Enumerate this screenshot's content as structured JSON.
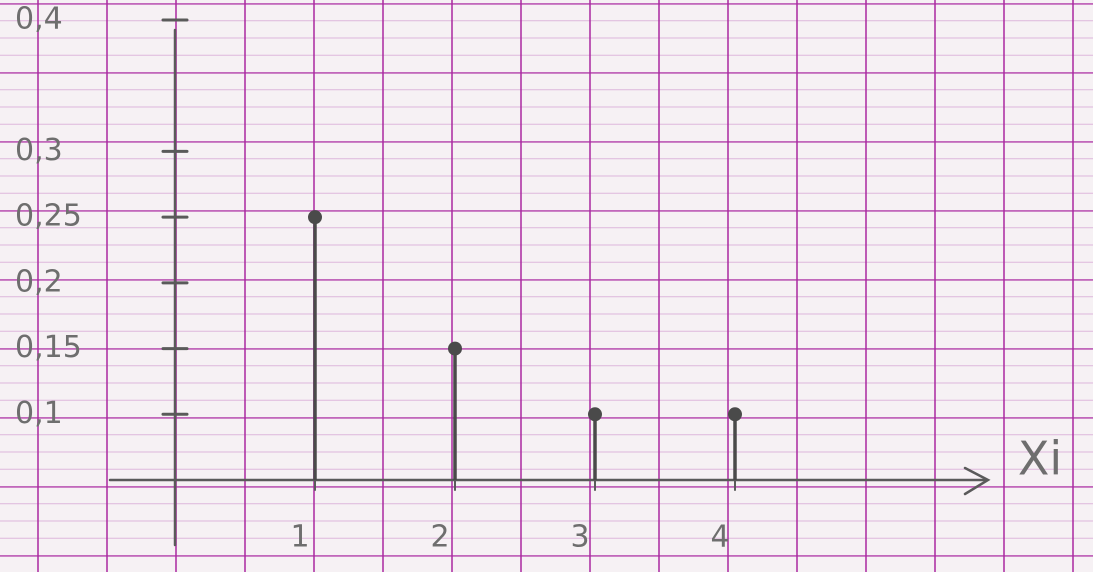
{
  "chart_data": {
    "type": "stem",
    "x_label": "Xi",
    "x": [
      1,
      2,
      3,
      4
    ],
    "values": [
      0.25,
      0.15,
      0.1,
      0.1
    ],
    "xlim": [
      0,
      6
    ],
    "xticks": [
      1,
      2,
      3,
      4
    ],
    "ylim": [
      0.05,
      0.4
    ],
    "yticks": [
      {
        "value": 0.1,
        "label": "0,1"
      },
      {
        "value": 0.15,
        "label": "0,15"
      },
      {
        "value": 0.2,
        "label": "0,2"
      },
      {
        "value": 0.25,
        "label": "0,25"
      },
      {
        "value": 0.3,
        "label": "0,3"
      },
      {
        "value": 0.4,
        "label": "0,4"
      }
    ],
    "color": "#4a4a4a"
  }
}
